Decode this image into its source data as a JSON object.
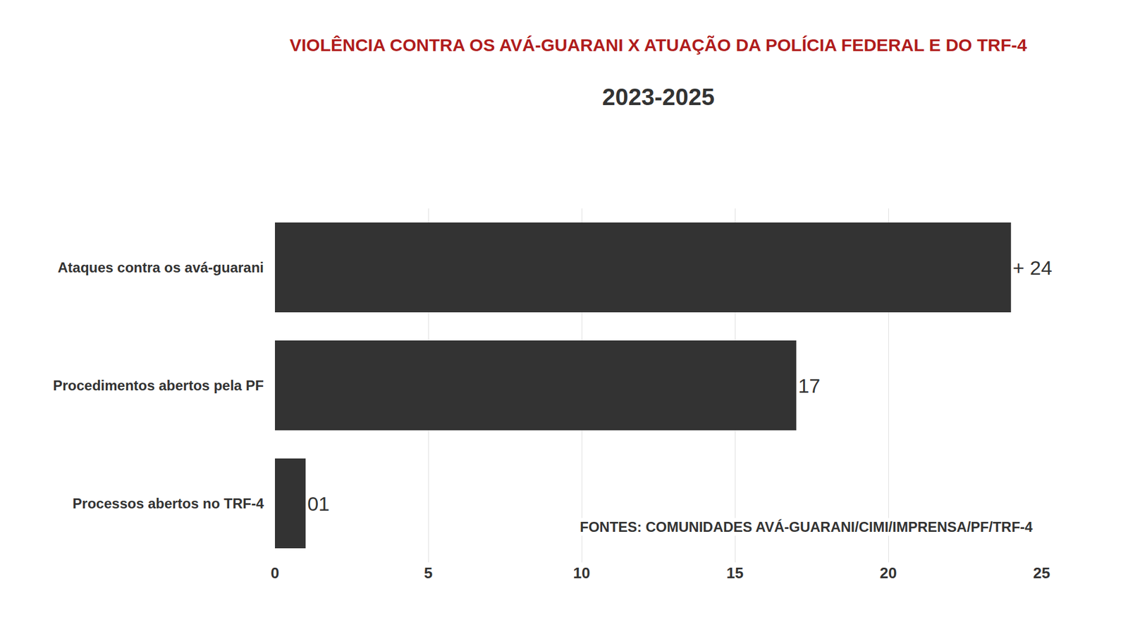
{
  "chart_data": {
    "type": "bar",
    "title": "VIOLÊNCIA CONTRA OS AVÁ-GUARANI X ATUAÇÃO DA POLÍCIA FEDERAL E DO TRF-4",
    "subtitle": "2023-2025",
    "categories": [
      "Ataques contra os avá-guarani",
      "Procedimentos abertos pela PF",
      "Processos abertos no TRF-4"
    ],
    "values": [
      24,
      17,
      1
    ],
    "value_labels": [
      "+ 24",
      "17",
      "01"
    ],
    "color": "#333333",
    "orientation": "horizontal",
    "data_labels": true,
    "xlim": [
      0,
      25
    ],
    "xticks": [
      0,
      5,
      10,
      15,
      20,
      25
    ],
    "grid": true,
    "annotations": [
      "FONTES: COMUNIDADES AVÁ-GUARANI/CIMI/IMPRENSA/PF/TRF-4"
    ]
  }
}
